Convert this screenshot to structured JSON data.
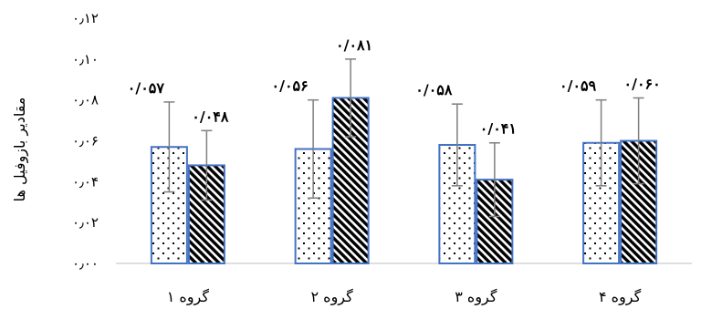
{
  "chart_data": {
    "type": "bar",
    "title": "",
    "ylabel": "مقادیر بازوفیل ها",
    "xlabel": "",
    "ylim": [
      0,
      0.12
    ],
    "y_ticks": [
      {
        "value": 0.0,
        "label": "۰٫۰۰"
      },
      {
        "value": 0.02,
        "label": "۰٫۰۲"
      },
      {
        "value": 0.04,
        "label": "۰٫۰۴"
      },
      {
        "value": 0.06,
        "label": "۰٫۰۶"
      },
      {
        "value": 0.08,
        "label": "۰٫۰۸"
      },
      {
        "value": 0.1,
        "label": "۰٫۱۰"
      },
      {
        "value": 0.12,
        "label": "۰٫۱۲"
      }
    ],
    "categories": [
      "گروه ۱",
      "گروه ۲",
      "گروه ۳",
      "گروه ۴"
    ],
    "series": [
      {
        "pattern": "dots",
        "values": [
          0.057,
          0.056,
          0.058,
          0.059
        ],
        "error": [
          0.022,
          0.024,
          0.02,
          0.021
        ],
        "labels": [
          "۰/۰۵۷",
          "۰/۰۵۶",
          "۰/۰۵۸",
          "۰/۰۵۹"
        ]
      },
      {
        "pattern": "diagonal-stripes",
        "values": [
          0.048,
          0.081,
          0.041,
          0.06
        ],
        "error": [
          0.017,
          0.019,
          0.018,
          0.021
        ],
        "labels": [
          "۰/۰۴۸",
          "۰/۰۸۱",
          "۰/۰۴۱",
          "۰/۰۶۰"
        ]
      }
    ],
    "grid": false,
    "legend": "none",
    "colors": {
      "bar_border": "#4472c4",
      "error_bar": "#7f7f7f",
      "axis": "#bfbfbf"
    }
  }
}
